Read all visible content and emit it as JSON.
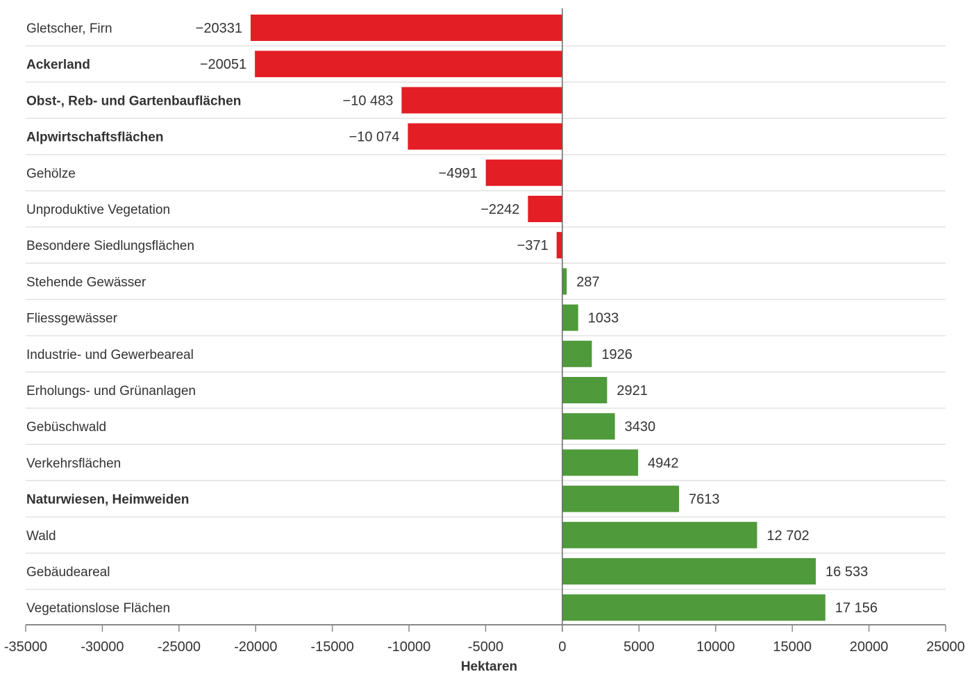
{
  "chart_data": {
    "type": "bar",
    "orientation": "horizontal",
    "categories": [
      "Gletscher, Firn",
      "Ackerland",
      "Obst-, Reb- und Gartenbauflächen",
      "Alpwirtschaftsflächen",
      "Gehölze",
      "Unproduktive Vegetation",
      "Besondere Siedlungsflächen",
      "Stehende Gewässer",
      "Fliessgewässer",
      "Industrie- und Gewerbeareal",
      "Erholungs- und Grünanlagen",
      "Gebüschwald",
      "Verkehrsflächen",
      "Naturwiesen, Heimweiden",
      "Wald",
      "Gebäudeareal",
      "Vegetationslose Flächen"
    ],
    "bold_categories": [
      "Ackerland",
      "Obst-, Reb- und Gartenbauflächen",
      "Alpwirtschaftsflächen",
      "Naturwiesen, Heimweiden"
    ],
    "values": [
      -20331,
      -20051,
      -10483,
      -10074,
      -4991,
      -2242,
      -371,
      287,
      1033,
      1926,
      2921,
      3430,
      4942,
      7613,
      12702,
      16533,
      17156
    ],
    "data_labels": [
      "−20331",
      "−20051",
      "−10 483",
      "−10 074",
      "−4991",
      "−2242",
      "−371",
      "287",
      "1033",
      "1926",
      "2921",
      "3430",
      "4942",
      "7613",
      "12 702",
      "16 533",
      "17 156"
    ],
    "xlabel": "Hektaren",
    "ylabel": "",
    "xlim": [
      -35000,
      25000
    ],
    "xticks": [
      -35000,
      -30000,
      -25000,
      -20000,
      -15000,
      -10000,
      -5000,
      0,
      5000,
      10000,
      15000,
      20000,
      25000
    ],
    "xtick_labels": [
      "-35000",
      "-30000",
      "-25000",
      "-20000",
      "-15000",
      "-10000",
      "-5000",
      "0",
      "5000",
      "10000",
      "15000",
      "20000",
      "25000"
    ],
    "grid": "horizontal row separators",
    "colors": {
      "negative": "#e31e24",
      "positive": "#4f9a3b"
    }
  }
}
